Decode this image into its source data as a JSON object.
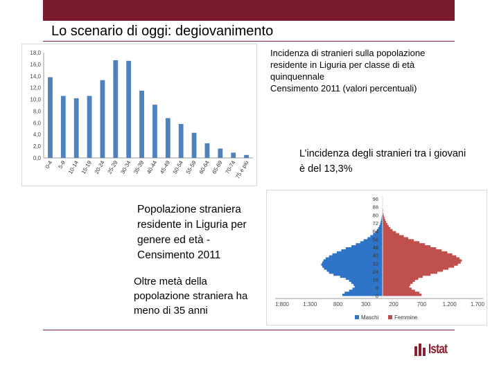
{
  "slide": {
    "title": "Lo scenario di oggi: degiovanimento",
    "caption_top": [
      "Incidenza di stranieri sulla popolazione",
      "residente in Liguria per classe di età",
      "quinquennale",
      "Censimento 2011 (valori percentuali)"
    ],
    "giovani_note": "L’incidenza degli stranieri tra i giovani è del 13,3%",
    "pyramid_caption": "Popolazione straniera residente in Liguria per genere ed età - Censimento 2011",
    "half_note": "Oltre metà della popolazione straniera ha meno di 35 anni"
  },
  "logo": {
    "text": "Istat"
  },
  "colors": {
    "brand": "#7a1a2d",
    "bar": "#4f81bd",
    "male": "#2e75c8",
    "female": "#c0504d"
  },
  "chart_data": [
    {
      "type": "bar",
      "title": "",
      "categories": [
        "0-4",
        "5-9",
        "10-14",
        "15-19",
        "20-24",
        "25-29",
        "30-34",
        "35-39",
        "40-44",
        "45-49",
        "50-54",
        "55-59",
        "60-64",
        "65-69",
        "70-74",
        "75 e più"
      ],
      "values": [
        13.8,
        10.6,
        10.2,
        10.6,
        13.3,
        16.7,
        16.6,
        11.5,
        9.1,
        6.8,
        5.8,
        4.3,
        2.5,
        1.6,
        0.9,
        0.5
      ],
      "ylim": [
        0,
        18
      ],
      "yticks": [
        "0,0",
        "2,0",
        "4,0",
        "6,0",
        "8,0",
        "10,0",
        "12,0",
        "14,0",
        "16,0",
        "18,0"
      ],
      "xlabel": "",
      "ylabel": "",
      "grid": false
    },
    {
      "type": "bar",
      "orientation": "horizontal-pyramid",
      "age_ticks": [
        "96",
        "88",
        "80",
        "72",
        "64",
        "56",
        "48",
        "40",
        "32",
        "24",
        "16",
        "8",
        "0"
      ],
      "x_ticks": [
        "1.800",
        "1.300",
        "800",
        "300",
        "200",
        "700",
        "1.200",
        "1.700"
      ],
      "series": [
        {
          "name": "Maschi",
          "ages": [
            0,
            2,
            4,
            6,
            8,
            10,
            12,
            14,
            16,
            18,
            20,
            22,
            24,
            26,
            28,
            30,
            32,
            34,
            36,
            38,
            40,
            42,
            44,
            46,
            48,
            50,
            52,
            54,
            56,
            58,
            60,
            62,
            64,
            66,
            68,
            70,
            72,
            74,
            76,
            78,
            80,
            84,
            88,
            92,
            96
          ],
          "values": [
            720,
            680,
            600,
            540,
            500,
            520,
            560,
            600,
            660,
            760,
            880,
            960,
            1000,
            1050,
            1080,
            1100,
            1080,
            1060,
            1020,
            960,
            900,
            820,
            740,
            660,
            560,
            480,
            400,
            340,
            270,
            220,
            170,
            130,
            100,
            80,
            60,
            45,
            35,
            25,
            18,
            12,
            8,
            5,
            3,
            2,
            1
          ]
        },
        {
          "name": "Femmine",
          "ages": [
            0,
            2,
            4,
            6,
            8,
            10,
            12,
            14,
            16,
            18,
            20,
            22,
            24,
            26,
            28,
            30,
            32,
            34,
            36,
            38,
            40,
            42,
            44,
            46,
            48,
            50,
            52,
            54,
            56,
            58,
            60,
            62,
            64,
            66,
            68,
            70,
            72,
            74,
            76,
            78,
            80,
            84,
            88,
            92,
            96
          ],
          "values": [
            700,
            660,
            580,
            520,
            480,
            500,
            540,
            580,
            640,
            720,
            860,
            980,
            1080,
            1180,
            1280,
            1350,
            1400,
            1420,
            1380,
            1320,
            1250,
            1160,
            1060,
            960,
            860,
            760,
            660,
            560,
            460,
            380,
            300,
            240,
            180,
            140,
            110,
            85,
            65,
            48,
            35,
            25,
            16,
            10,
            6,
            3,
            1
          ]
        }
      ],
      "xlim": [
        -1800,
        1800
      ]
    }
  ]
}
